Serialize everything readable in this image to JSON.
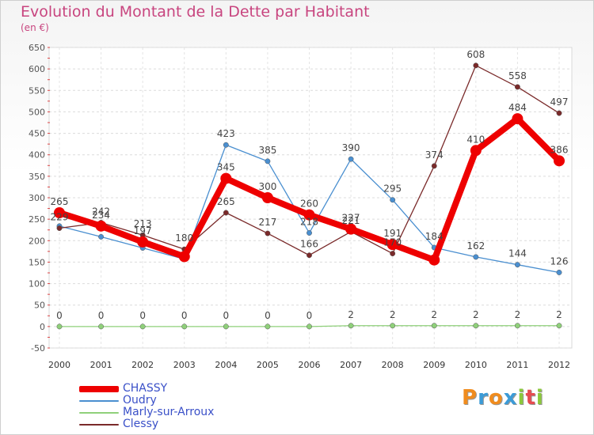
{
  "header": {
    "title": "Evolution du Montant de la Dette par Habitant",
    "subtitle": "(en €)"
  },
  "logo": {
    "text": "Proxiti",
    "letters": [
      "P",
      "r",
      "o",
      "x",
      "i",
      "t",
      "i"
    ],
    "colors": [
      "#f08c1e",
      "#3c9bd7",
      "#f08c1e",
      "#3c9bd7",
      "#8cc83c",
      "#e64b50",
      "#8cc83c"
    ]
  },
  "chart_data": {
    "type": "line",
    "x": [
      "2000",
      "2001",
      "2002",
      "2003",
      "2004",
      "2005",
      "2006",
      "2007",
      "2008",
      "2009",
      "2010",
      "2011",
      "2012"
    ],
    "ylim": [
      -50,
      650
    ],
    "yticks": [
      "-50",
      "0",
      "50",
      "100",
      "150",
      "200",
      "250",
      "300",
      "350",
      "400",
      "450",
      "500",
      "550",
      "600",
      "650"
    ],
    "ytick_values": [
      -50,
      0,
      50,
      100,
      150,
      200,
      250,
      300,
      350,
      400,
      450,
      500,
      550,
      600,
      650
    ],
    "grid": true,
    "legend_position": "bottom-left",
    "series": [
      {
        "name": "CHASSY",
        "color": "#ee0000",
        "values": [
          265,
          234,
          197,
          163,
          345,
          300,
          260,
          227,
          191,
          155,
          410,
          484,
          386
        ],
        "labels": [
          "265",
          "234",
          "197",
          "",
          "345",
          "300",
          "260",
          "227",
          "191",
          "",
          "410",
          "484",
          "386"
        ]
      },
      {
        "name": "Oudry",
        "color": "#4a8fd0",
        "values": [
          234,
          209,
          183,
          157,
          423,
          385,
          218,
          390,
          295,
          184,
          162,
          144,
          126
        ],
        "labels": [
          "",
          "",
          "",
          "",
          "423",
          "385",
          "218",
          "390",
          "295",
          "184",
          "162",
          "144",
          "126"
        ]
      },
      {
        "name": "Marly-sur-Arroux",
        "color": "#8fd07a",
        "values": [
          0,
          0,
          0,
          0,
          0,
          0,
          0,
          2,
          2,
          2,
          2,
          2,
          2
        ],
        "labels": [
          "0",
          "0",
          "0",
          "0",
          "0",
          "0",
          "0",
          "2",
          "2",
          "2",
          "2",
          "2",
          "2"
        ]
      },
      {
        "name": "Clessy",
        "color": "#7a2a2a",
        "values": [
          229,
          242,
          213,
          180,
          265,
          217,
          166,
          221,
          170,
          374,
          608,
          558,
          497
        ],
        "labels": [
          "229",
          "242",
          "213",
          "180",
          "265",
          "217",
          "166",
          "221",
          "170",
          "374",
          "608",
          "558",
          "497"
        ]
      }
    ]
  }
}
